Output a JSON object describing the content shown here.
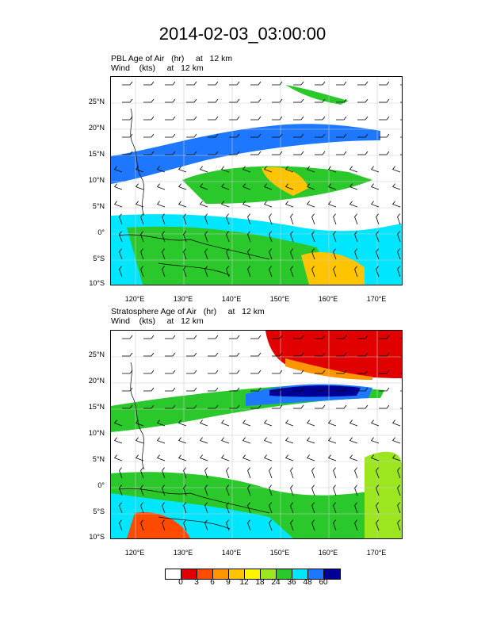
{
  "title": "2014-02-03_03:00:00",
  "panels": [
    {
      "id": "pbl",
      "field_title": "PBL Age of Air   (hr)     at   12 km",
      "wind_title": "Wind    (kts)     at   12 km",
      "overlay": "blue-green"
    },
    {
      "id": "strat",
      "field_title": "Stratosphere Age of Air   (hr)     at   12 km",
      "wind_title": "Wind    (kts)     at   12 km",
      "overlay": "red-blue"
    }
  ],
  "lat_labels": [
    "25°N",
    "20°N",
    "15°N",
    "10°N",
    "5°N",
    "0°",
    "5°S",
    "10°S"
  ],
  "lon_labels": [
    "120°E",
    "130°E",
    "140°E",
    "150°E",
    "160°E",
    "170°E"
  ],
  "colorbar": {
    "colors": [
      "#ffffff",
      "#e00000",
      "#ff4b00",
      "#ff9600",
      "#ffc400",
      "#fff500",
      "#9be61e",
      "#2bc82b",
      "#00e6ff",
      "#1e78ff",
      "#000096"
    ],
    "labels": [
      "0",
      "3",
      "6",
      "9",
      "12",
      "18",
      "24",
      "36",
      "48",
      "60"
    ]
  }
}
